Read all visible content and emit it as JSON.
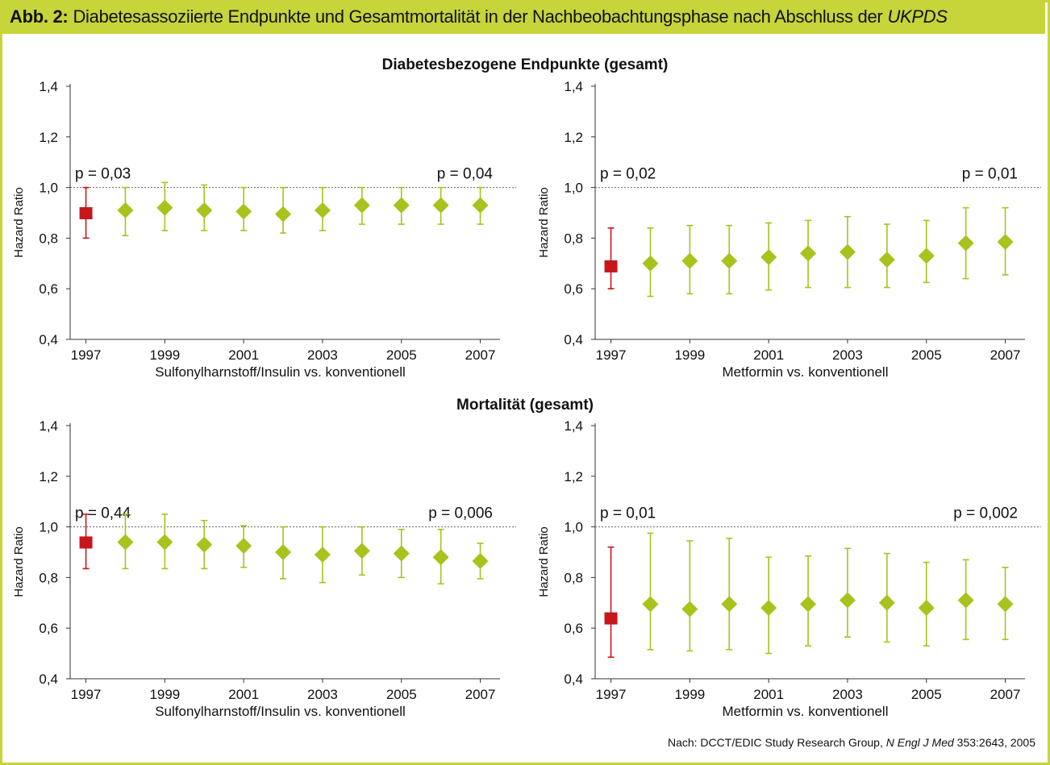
{
  "header": {
    "label": "Abb. 2:",
    "text": "Diabetesassoziierte Endpunkte und Gesamtmortalität in der Nachbeobachtungsphase nach Abschluss der",
    "emphasis": "UKPDS"
  },
  "sections": [
    {
      "title": "Diabetesbezogene Endpunkte (gesamt)"
    },
    {
      "title": "Mortalität (gesamt)"
    }
  ],
  "source": {
    "prefix": "Nach: DCCT/EDIC Study Research Group,",
    "journal": "N Engl J Med",
    "suffix": "353:2643, 2005"
  },
  "colors": {
    "accent": "#c7d43a",
    "marker": "#a9c21c",
    "baseline": "#c8161d"
  },
  "chart_data": [
    {
      "type": "scatter",
      "title": "Diabetesbezogene Endpunkte (gesamt)",
      "xlabel": "Sulfonylharnstoff/Insulin vs. konventionell",
      "ylabel": "Hazard Ratio",
      "ylim": [
        0.4,
        1.4
      ],
      "yticks": [
        "0,4",
        "0,6",
        "0,8",
        "1,0",
        "1,2",
        "1,4"
      ],
      "xticks": [
        "1997",
        "1999",
        "2001",
        "2003",
        "2005",
        "2007"
      ],
      "reference_line": 1.0,
      "p_left": "p = 0,03",
      "p_right": "p = 0,04",
      "x": [
        1997,
        1998,
        1999,
        2000,
        2001,
        2002,
        2003,
        2004,
        2005,
        2006,
        2007
      ],
      "hr": [
        0.9,
        0.91,
        0.92,
        0.91,
        0.905,
        0.895,
        0.91,
        0.93,
        0.93,
        0.93,
        0.93
      ],
      "low": [
        0.8,
        0.81,
        0.83,
        0.83,
        0.83,
        0.82,
        0.83,
        0.855,
        0.855,
        0.855,
        0.855
      ],
      "high": [
        1.0,
        1.0,
        1.02,
        1.01,
        1.0,
        1.0,
        1.0,
        1.0,
        1.0,
        1.0,
        1.0
      ]
    },
    {
      "type": "scatter",
      "title": "Diabetesbezogene Endpunkte (gesamt)",
      "xlabel": "Metformin vs. konventionell",
      "ylabel": "Hazard Ratio",
      "ylim": [
        0.4,
        1.4
      ],
      "yticks": [
        "0,4",
        "0,6",
        "0,8",
        "1,0",
        "1,2",
        "1,4"
      ],
      "xticks": [
        "1997",
        "1999",
        "2001",
        "2003",
        "2005",
        "2007"
      ],
      "reference_line": 1.0,
      "p_left": "p = 0,02",
      "p_right": "p = 0,01",
      "x": [
        1997,
        1998,
        1999,
        2000,
        2001,
        2002,
        2003,
        2004,
        2005,
        2006,
        2007
      ],
      "hr": [
        0.69,
        0.7,
        0.71,
        0.71,
        0.725,
        0.74,
        0.745,
        0.715,
        0.73,
        0.78,
        0.785
      ],
      "low": [
        0.6,
        0.57,
        0.58,
        0.58,
        0.595,
        0.605,
        0.605,
        0.605,
        0.625,
        0.64,
        0.655
      ],
      "high": [
        0.84,
        0.84,
        0.85,
        0.85,
        0.86,
        0.87,
        0.885,
        0.855,
        0.87,
        0.92,
        0.92
      ]
    },
    {
      "type": "scatter",
      "title": "Mortalität (gesamt)",
      "xlabel": "Sulfonylharnstoff/Insulin vs. konventionell",
      "ylabel": "Hazard Ratio",
      "ylim": [
        0.4,
        1.4
      ],
      "yticks": [
        "0,4",
        "0,6",
        "0,8",
        "1,0",
        "1,2",
        "1,4"
      ],
      "xticks": [
        "1997",
        "1999",
        "2001",
        "2003",
        "2005",
        "2007"
      ],
      "reference_line": 1.0,
      "p_left": "p = 0,44",
      "p_right": "p = 0,006",
      "x": [
        1997,
        1998,
        1999,
        2000,
        2001,
        2002,
        2003,
        2004,
        2005,
        2006,
        2007
      ],
      "hr": [
        0.94,
        0.94,
        0.94,
        0.93,
        0.925,
        0.9,
        0.89,
        0.905,
        0.895,
        0.88,
        0.865
      ],
      "low": [
        0.835,
        0.835,
        0.835,
        0.835,
        0.84,
        0.795,
        0.78,
        0.81,
        0.8,
        0.775,
        0.795
      ],
      "high": [
        1.05,
        1.05,
        1.05,
        1.025,
        1.005,
        1.0,
        1.0,
        1.0,
        0.99,
        0.99,
        0.935
      ]
    },
    {
      "type": "scatter",
      "title": "Mortalität (gesamt)",
      "xlabel": "Metformin vs. konventionell",
      "ylabel": "Hazard Ratio",
      "ylim": [
        0.4,
        1.4
      ],
      "yticks": [
        "0,4",
        "0,6",
        "0,8",
        "1,0",
        "1,2",
        "1,4"
      ],
      "xticks": [
        "1997",
        "1999",
        "2001",
        "2003",
        "2005",
        "2007"
      ],
      "reference_line": 1.0,
      "p_left": "p = 0,01",
      "p_right": "p = 0,002",
      "x": [
        1997,
        1998,
        1999,
        2000,
        2001,
        2002,
        2003,
        2004,
        2005,
        2006,
        2007
      ],
      "hr": [
        0.64,
        0.695,
        0.675,
        0.695,
        0.68,
        0.695,
        0.71,
        0.7,
        0.68,
        0.71,
        0.695
      ],
      "low": [
        0.485,
        0.515,
        0.51,
        0.515,
        0.5,
        0.53,
        0.565,
        0.545,
        0.53,
        0.555,
        0.555
      ],
      "high": [
        0.92,
        0.975,
        0.945,
        0.955,
        0.88,
        0.885,
        0.915,
        0.895,
        0.86,
        0.87,
        0.84
      ]
    }
  ]
}
